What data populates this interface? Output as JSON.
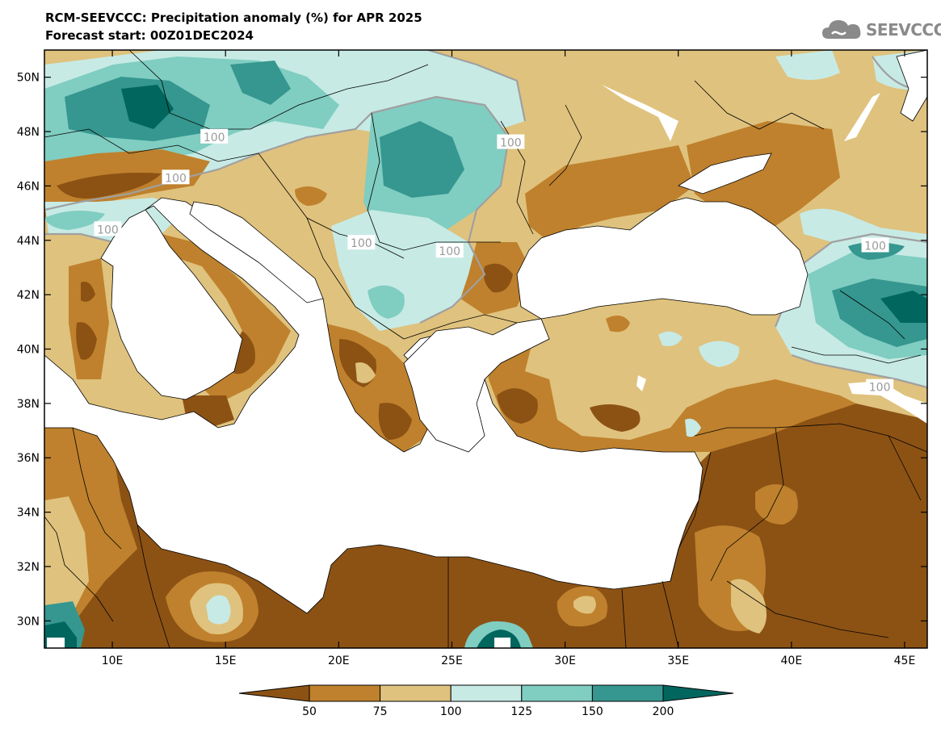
{
  "header": {
    "title": "RCM-SEEVCCC: Precipitation anomaly (%) for APR 2025",
    "subtitle": "Forecast start: 00Z01DEC2024"
  },
  "logo": {
    "text": "SEEVCCC",
    "icon": "cloud-logo-icon",
    "color": "#8a8a8a"
  },
  "map": {
    "lon_range": [
      7,
      46
    ],
    "lat_range": [
      29,
      51
    ],
    "x_ticks": [
      {
        "lon": 10,
        "label": "10E"
      },
      {
        "lon": 15,
        "label": "15E"
      },
      {
        "lon": 20,
        "label": "20E"
      },
      {
        "lon": 25,
        "label": "25E"
      },
      {
        "lon": 30,
        "label": "30E"
      },
      {
        "lon": 35,
        "label": "35E"
      },
      {
        "lon": 40,
        "label": "40E"
      },
      {
        "lon": 45,
        "label": "45E"
      }
    ],
    "y_ticks": [
      {
        "lat": 30,
        "label": "30N"
      },
      {
        "lat": 32,
        "label": "32N"
      },
      {
        "lat": 34,
        "label": "34N"
      },
      {
        "lat": 36,
        "label": "36N"
      },
      {
        "lat": 38,
        "label": "38N"
      },
      {
        "lat": 40,
        "label": "40N"
      },
      {
        "lat": 42,
        "label": "42N"
      },
      {
        "lat": 44,
        "label": "44N"
      },
      {
        "lat": 46,
        "label": "46N"
      },
      {
        "lat": 48,
        "label": "48N"
      },
      {
        "lat": 50,
        "label": "50N"
      }
    ],
    "contour_labels": [
      {
        "lon": 14.5,
        "lat": 47.8,
        "text": "100"
      },
      {
        "lon": 27.6,
        "lat": 47.6,
        "text": "100"
      },
      {
        "lon": 12.8,
        "lat": 46.3,
        "text": "100"
      },
      {
        "lon": 9.8,
        "lat": 44.4,
        "text": "100"
      },
      {
        "lon": 21.0,
        "lat": 43.9,
        "text": "100"
      },
      {
        "lon": 24.9,
        "lat": 43.6,
        "text": "100"
      },
      {
        "lon": 43.7,
        "lat": 43.8,
        "text": "100"
      },
      {
        "lon": 43.9,
        "lat": 38.6,
        "text": "100"
      }
    ],
    "colors": {
      "below_50": "#8c5214",
      "c50_75": "#bf812d",
      "c75_100": "#dfc27d",
      "c100_125": "#c7eae5",
      "c125_150": "#80cdc1",
      "c150_200": "#35978f",
      "above_200": "#01665e",
      "sea": "#ffffff",
      "contour100": "#a0a0a0"
    }
  },
  "colorbar": {
    "bins": [
      "#8c5214",
      "#bf812d",
      "#dfc27d",
      "#c7eae5",
      "#80cdc1",
      "#35978f",
      "#01665e"
    ],
    "labels": [
      "50",
      "75",
      "100",
      "125",
      "150",
      "200"
    ]
  }
}
